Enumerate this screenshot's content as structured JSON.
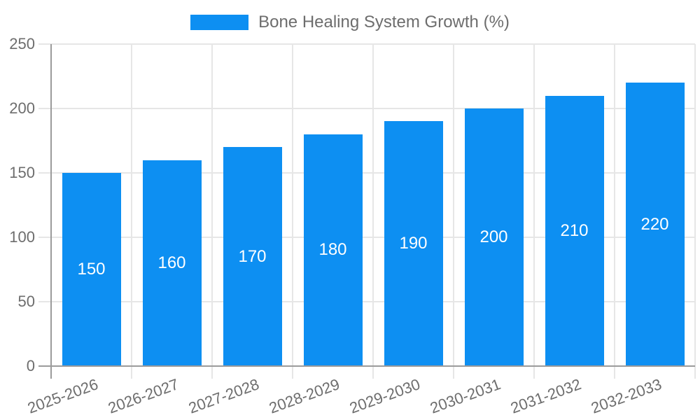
{
  "legend": {
    "label": "Bone Healing System Growth (%)"
  },
  "chart_data": {
    "type": "bar",
    "title": "Bone Healing System Growth (%)",
    "categories": [
      "2025-2026",
      "2026-2027",
      "2027-2028",
      "2028-2029",
      "2029-2030",
      "2030-2031",
      "2031-2032",
      "2032-2033"
    ],
    "values": [
      150,
      160,
      170,
      180,
      190,
      200,
      210,
      220
    ],
    "xlabel": "",
    "ylabel": "",
    "ylim": [
      0,
      250
    ],
    "yticks": [
      0,
      50,
      100,
      150,
      200,
      250
    ],
    "grid": true,
    "legend_position": "top",
    "value_labels": "inside-center",
    "x_label_rotation_deg": -20,
    "colors": {
      "bar": "#0d8ff2",
      "value_label": "#ffffff",
      "axis_text": "#6d6d6d",
      "gridline": "#e6e6e6",
      "axis_line": "#9b9b9b"
    }
  }
}
